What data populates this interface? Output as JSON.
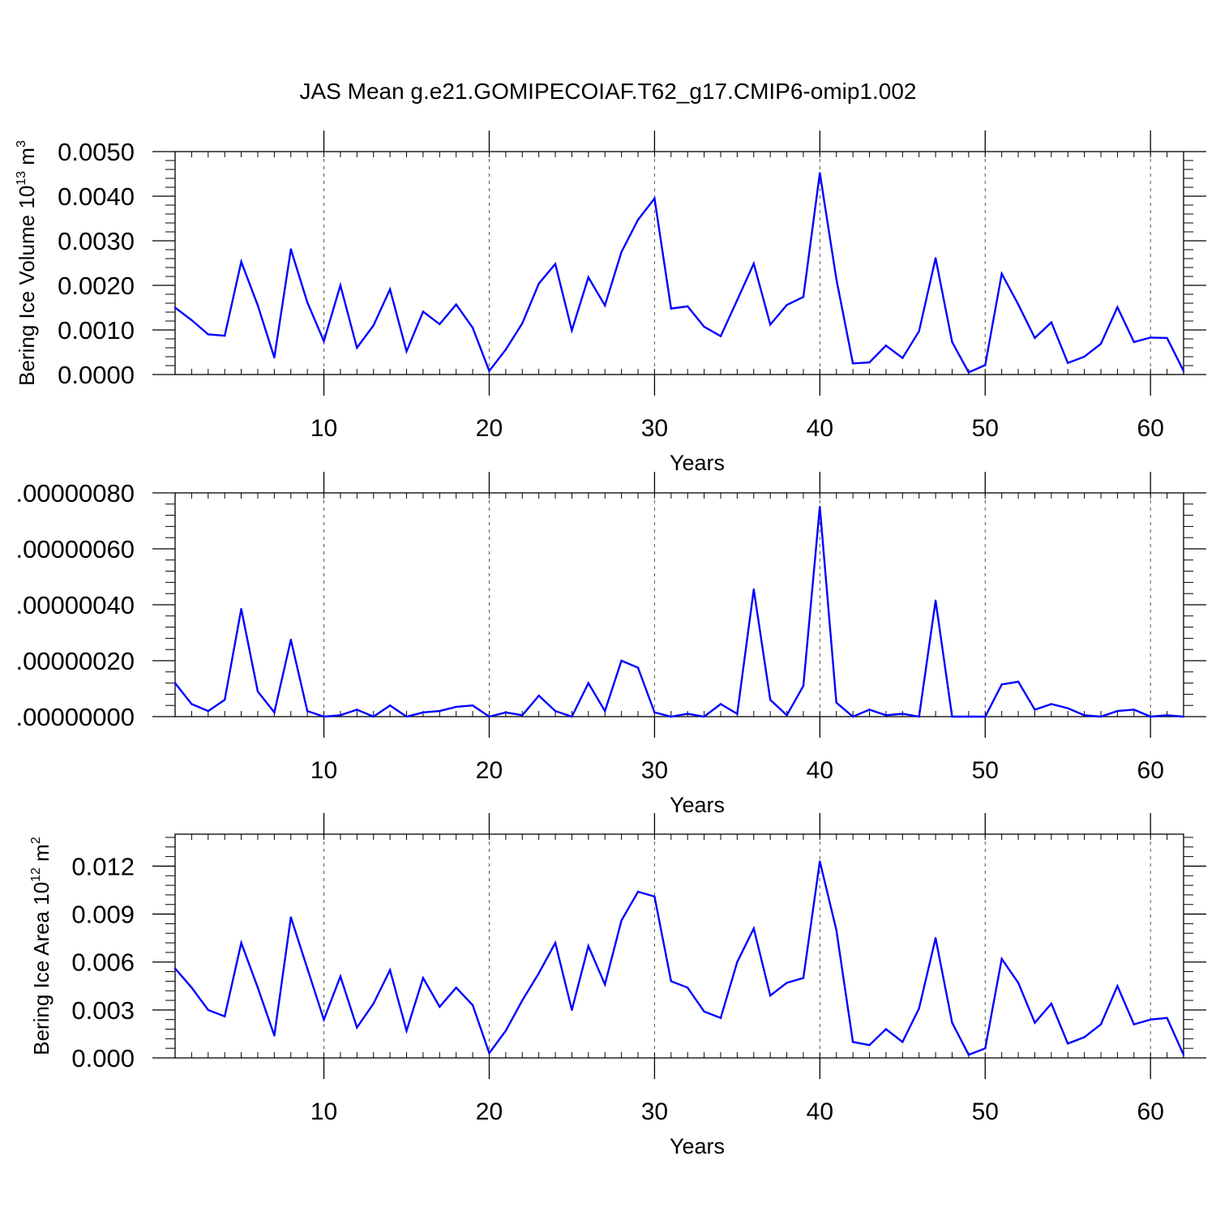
{
  "title": "JAS Mean g.e21.GOMIPECOIAF.T62_g17.CMIP6-omip1.002",
  "colors": {
    "line": "#0000ff",
    "axis": "#000000",
    "grid": "#555555"
  },
  "chart_data": [
    {
      "type": "line",
      "ylabel_main": "Bering Ice Volume 10",
      "ylabel_sup": "13",
      "ylabel_unit": "m",
      "ylabel_unit_sup": "3",
      "xlabel": "Years",
      "xlim": [
        1,
        62
      ],
      "ylim": [
        0,
        0.005
      ],
      "yticks": [
        0,
        0.001,
        0.002,
        0.003,
        0.004,
        0.005
      ],
      "yticklabels": [
        "0.0000",
        "0.0010",
        "0.0020",
        "0.0030",
        "0.0040",
        "0.0050"
      ],
      "xticks": [
        10,
        20,
        30,
        40,
        50,
        60
      ],
      "xticklabels": [
        "10",
        "20",
        "30",
        "40",
        "50",
        "60"
      ],
      "grid": "vertical dashed at major x ticks",
      "series": [
        {
          "x": [
            1,
            2,
            3,
            4,
            5,
            6,
            7,
            8,
            9,
            10,
            11,
            12,
            13,
            14,
            15,
            16,
            17,
            18,
            19,
            20,
            21,
            22,
            23,
            24,
            25,
            26,
            27,
            28,
            29,
            30,
            31,
            32,
            33,
            34,
            35,
            36,
            37,
            38,
            39,
            40,
            41,
            42,
            43,
            44,
            45,
            46,
            47,
            48,
            49,
            50,
            51,
            52,
            53,
            54,
            55,
            56,
            57,
            58,
            59,
            60,
            61,
            62
          ],
          "values": [
            0.0015,
            0.00122,
            0.0009,
            0.00087,
            0.00253,
            0.00155,
            0.00038,
            0.00281,
            0.00162,
            0.00075,
            0.002,
            0.0006,
            0.0011,
            0.00191,
            0.00052,
            0.00141,
            0.00113,
            0.00157,
            0.00105,
            8e-05,
            0.00056,
            0.00115,
            0.00204,
            0.00248,
            0.00099,
            0.00218,
            0.00155,
            0.00275,
            0.00347,
            0.00395,
            0.00148,
            0.00153,
            0.00107,
            0.00086,
            0.00167,
            0.00249,
            0.00112,
            0.00156,
            0.00174,
            0.00452,
            0.00214,
            0.00025,
            0.00027,
            0.00065,
            0.00037,
            0.00097,
            0.00261,
            0.00073,
            5e-05,
            0.00021,
            0.00226,
            0.00157,
            0.00082,
            0.00117,
            0.00026,
            0.0004,
            0.00069,
            0.00151,
            0.00073,
            0.00083,
            0.00082,
            8e-05
          ]
        }
      ]
    },
    {
      "type": "line",
      "xlabel": "Years",
      "xlim": [
        1,
        62
      ],
      "ylim": [
        0,
        8e-07
      ],
      "yticks": [
        0,
        2e-07,
        4e-07,
        6e-07,
        8e-07
      ],
      "yticklabels": [
        ".00000000",
        ".00000020",
        ".00000040",
        ".00000060",
        ".00000080"
      ],
      "xticks": [
        10,
        20,
        30,
        40,
        50,
        60
      ],
      "xticklabels": [
        "10",
        "20",
        "30",
        "40",
        "50",
        "60"
      ],
      "grid": "vertical dashed at major x ticks",
      "series": [
        {
          "x": [
            1,
            2,
            3,
            4,
            5,
            6,
            7,
            8,
            9,
            10,
            11,
            12,
            13,
            14,
            15,
            16,
            17,
            18,
            19,
            20,
            21,
            22,
            23,
            24,
            25,
            26,
            27,
            28,
            29,
            30,
            31,
            32,
            33,
            34,
            35,
            36,
            37,
            38,
            39,
            40,
            41,
            42,
            43,
            44,
            45,
            46,
            47,
            48,
            49,
            50,
            51,
            52,
            53,
            54,
            55,
            56,
            57,
            58,
            59,
            60,
            61,
            62
          ],
          "values": [
            1.2e-07,
            4.5e-08,
            2e-08,
            6e-08,
            3.85e-07,
            9e-08,
            1.5e-08,
            2.75e-07,
            2e-08,
            0.0,
            5e-09,
            2.5e-08,
            0.0,
            4e-08,
            0.0,
            1.5e-08,
            2e-08,
            3.5e-08,
            4e-08,
            0.0,
            1.5e-08,
            5e-09,
            7.5e-08,
            2e-08,
            0.0,
            1.2e-07,
            2e-08,
            2e-07,
            1.75e-07,
            1.5e-08,
            0.0,
            1e-08,
            0.0,
            4.5e-08,
            1e-08,
            4.55e-07,
            6e-08,
            5e-09,
            1.1e-07,
            7.5e-07,
            5e-08,
            0.0,
            2.5e-08,
            5e-09,
            1e-08,
            0.0,
            4.15e-07,
            0.0,
            0.0,
            0.0,
            1.15e-07,
            1.25e-07,
            2.5e-08,
            4.5e-08,
            3e-08,
            5e-09,
            0.0,
            2e-08,
            2.5e-08,
            0.0,
            5e-09,
            0.0
          ]
        }
      ]
    },
    {
      "type": "line",
      "ylabel_main": "Bering Ice Area 10",
      "ylabel_sup": "12",
      "ylabel_unit": "m",
      "ylabel_unit_sup": "2",
      "xlabel": "Years",
      "xlim": [
        1,
        62
      ],
      "ylim": [
        0,
        0.014
      ],
      "yticks": [
        0,
        0.003,
        0.006,
        0.009,
        0.012
      ],
      "yticklabels": [
        "0.000",
        "0.003",
        "0.006",
        "0.009",
        "0.012"
      ],
      "xticks": [
        10,
        20,
        30,
        40,
        50,
        60
      ],
      "xticklabels": [
        "10",
        "20",
        "30",
        "40",
        "50",
        "60"
      ],
      "grid": "vertical dashed at major x ticks",
      "series": [
        {
          "x": [
            1,
            2,
            3,
            4,
            5,
            6,
            7,
            8,
            9,
            10,
            11,
            12,
            13,
            14,
            15,
            16,
            17,
            18,
            19,
            20,
            21,
            22,
            23,
            24,
            25,
            26,
            27,
            28,
            29,
            30,
            31,
            32,
            33,
            34,
            35,
            36,
            37,
            38,
            39,
            40,
            41,
            42,
            43,
            44,
            45,
            46,
            47,
            48,
            49,
            50,
            51,
            52,
            53,
            54,
            55,
            56,
            57,
            58,
            59,
            60,
            61,
            62
          ],
          "values": [
            0.0056,
            0.0044,
            0.003,
            0.0026,
            0.0072,
            0.0044,
            0.0014,
            0.0088,
            0.0056,
            0.0024,
            0.0051,
            0.0019,
            0.0034,
            0.0055,
            0.0017,
            0.005,
            0.0032,
            0.0044,
            0.0033,
            0.0003,
            0.0017,
            0.0036,
            0.0053,
            0.0072,
            0.003,
            0.007,
            0.0046,
            0.0086,
            0.0104,
            0.0101,
            0.0048,
            0.0044,
            0.0029,
            0.0025,
            0.006,
            0.0081,
            0.0039,
            0.0047,
            0.005,
            0.0123,
            0.008,
            0.001,
            0.0008,
            0.0018,
            0.001,
            0.0031,
            0.0075,
            0.0022,
            0.0002,
            0.0006,
            0.0062,
            0.0047,
            0.0022,
            0.0034,
            0.0009,
            0.0013,
            0.0021,
            0.0045,
            0.0021,
            0.0024,
            0.0025,
            0.0002
          ]
        }
      ]
    }
  ]
}
